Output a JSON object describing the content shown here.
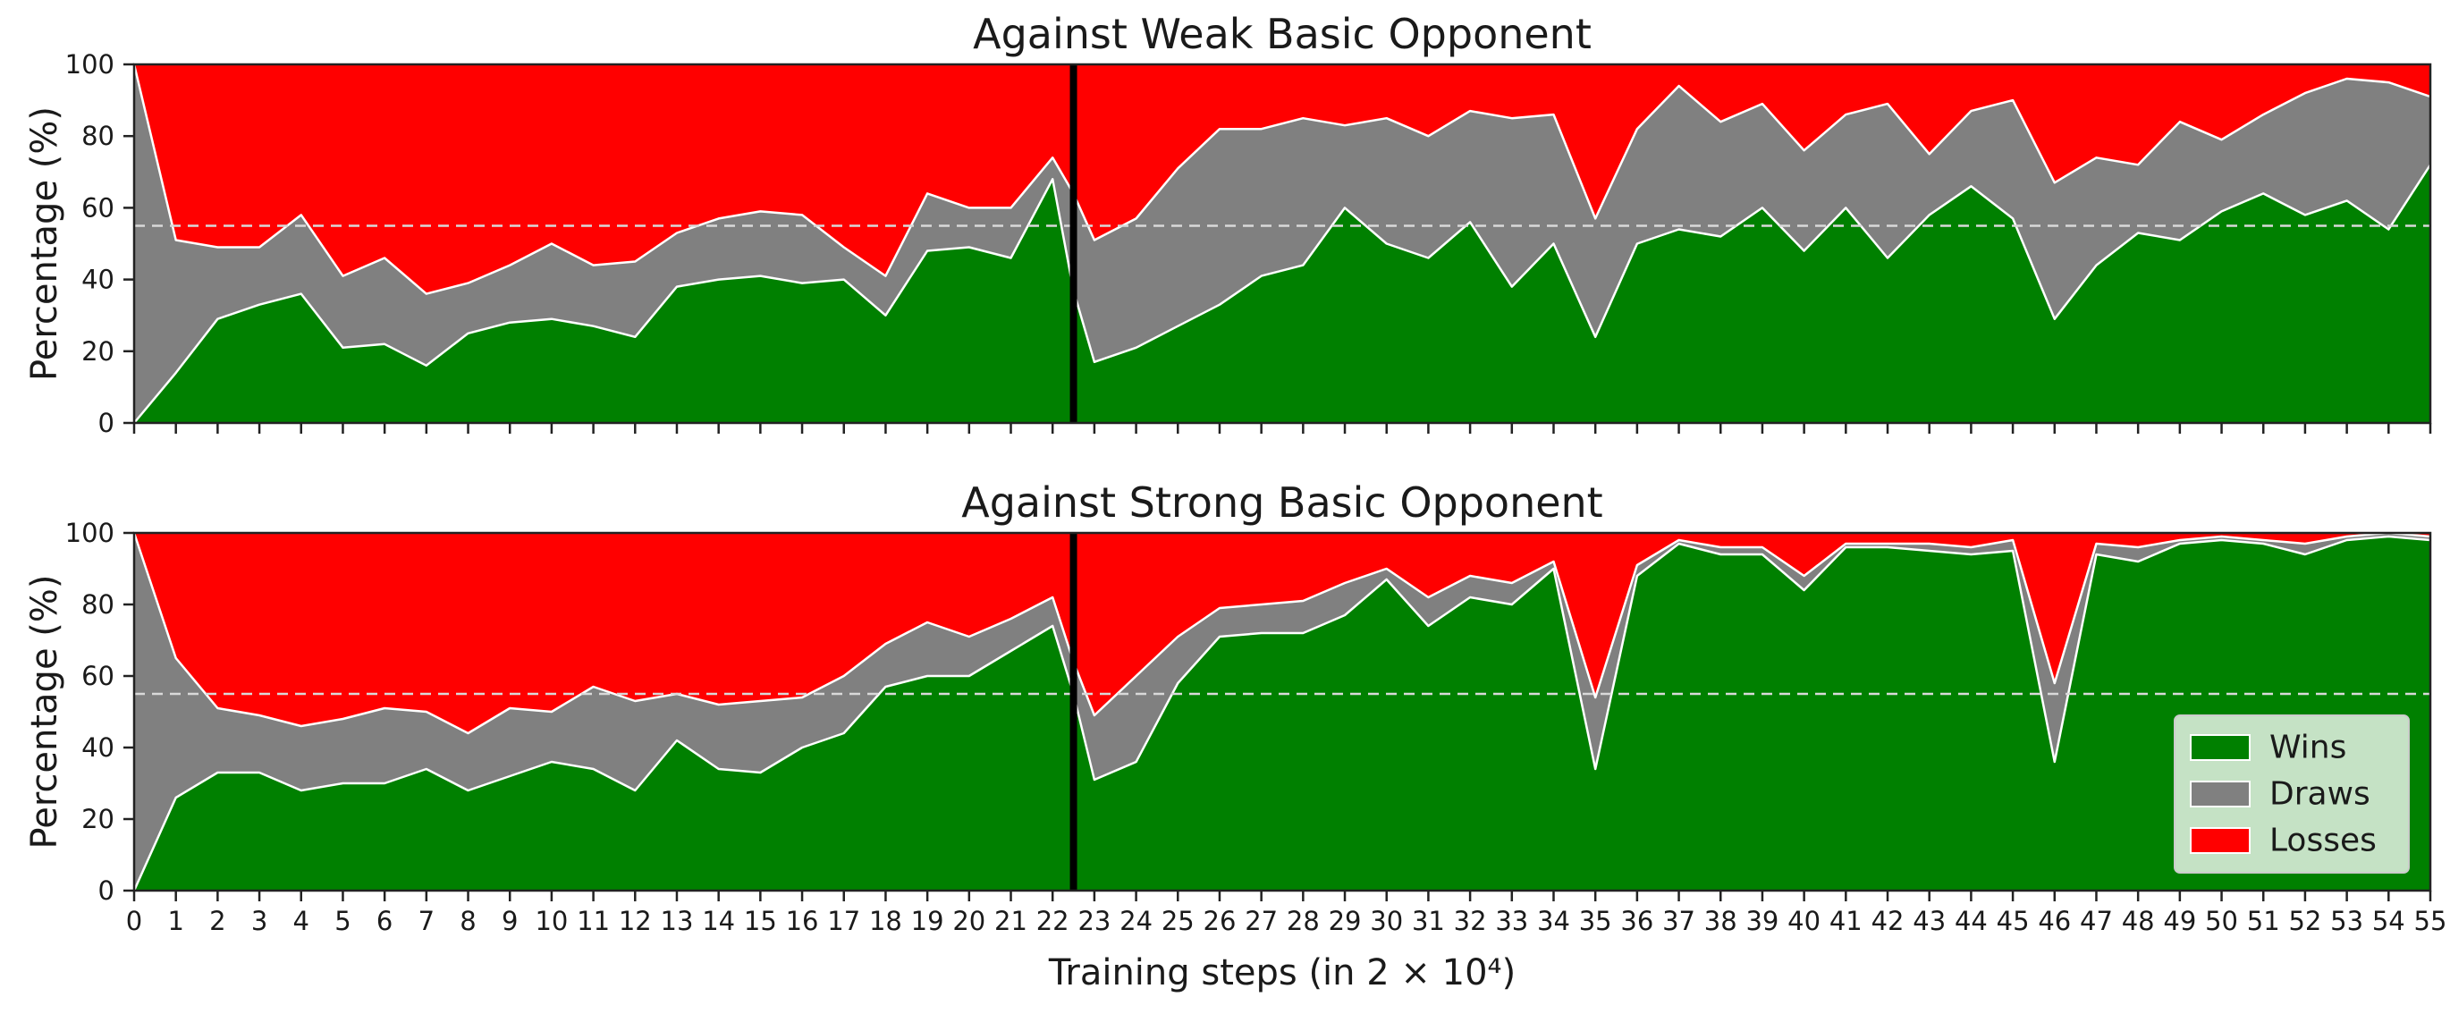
{
  "chart_data": [
    {
      "type": "area",
      "stacked": true,
      "title": "Against Weak Basic Opponent",
      "ylabel": "Percentage (%)",
      "xlabel": "",
      "show_xtick_labels": false,
      "xlim": [
        0,
        55
      ],
      "ylim": [
        0,
        100
      ],
      "yticks": [
        0,
        20,
        40,
        60,
        80,
        100
      ],
      "grid": false,
      "reference_line": {
        "y": 55,
        "style": "dashed",
        "color": "#d9d9d9"
      },
      "vertical_marker": {
        "x": 22.5,
        "color": "#000000"
      },
      "x": [
        0,
        1,
        2,
        3,
        4,
        5,
        6,
        7,
        8,
        9,
        10,
        11,
        12,
        13,
        14,
        15,
        16,
        17,
        18,
        19,
        20,
        21,
        22,
        22.5,
        23,
        24,
        25,
        26,
        27,
        28,
        29,
        30,
        31,
        32,
        33,
        34,
        35,
        36,
        37,
        38,
        39,
        40,
        41,
        42,
        43,
        44,
        45,
        46,
        47,
        48,
        49,
        50,
        51,
        52,
        53,
        54,
        55
      ],
      "series": [
        {
          "name": "Wins",
          "color": "#008000",
          "values": [
            0,
            14,
            29,
            33,
            36,
            21,
            22,
            16,
            25,
            28,
            29,
            27,
            24,
            38,
            40,
            41,
            39,
            40,
            30,
            48,
            49,
            46,
            68,
            37,
            17,
            21,
            27,
            33,
            41,
            44,
            60,
            50,
            46,
            56,
            38,
            50,
            24,
            50,
            54,
            52,
            60,
            48,
            60,
            46,
            58,
            66,
            57,
            29,
            44,
            53,
            51,
            59,
            64,
            58,
            62,
            54,
            72
          ]
        },
        {
          "name": "Draws",
          "color": "#808080",
          "values": [
            100,
            37,
            20,
            16,
            22,
            20,
            24,
            20,
            14,
            16,
            21,
            17,
            21,
            15,
            17,
            18,
            19,
            9,
            11,
            16,
            11,
            14,
            6,
            27,
            34,
            36,
            44,
            49,
            41,
            41,
            23,
            35,
            34,
            31,
            47,
            36,
            33,
            32,
            40,
            32,
            29,
            28,
            26,
            43,
            17,
            21,
            33,
            38,
            30,
            19,
            33,
            20,
            22,
            34,
            34,
            41,
            19
          ]
        },
        {
          "name": "Losses",
          "color": "#ff0000",
          "values": [
            0,
            49,
            51,
            51,
            42,
            59,
            54,
            64,
            61,
            56,
            50,
            56,
            55,
            47,
            43,
            41,
            42,
            51,
            59,
            36,
            40,
            40,
            26,
            36,
            49,
            43,
            29,
            18,
            18,
            15,
            17,
            15,
            20,
            13,
            15,
            14,
            43,
            18,
            6,
            16,
            11,
            24,
            14,
            11,
            25,
            13,
            10,
            33,
            26,
            28,
            16,
            21,
            14,
            8,
            4,
            5,
            9
          ]
        }
      ]
    },
    {
      "type": "area",
      "stacked": true,
      "title": "Against Strong Basic Opponent",
      "ylabel": "Percentage (%)",
      "xlabel": "Training steps (in 2 × 10⁴)",
      "show_xtick_labels": true,
      "xlim": [
        0,
        55
      ],
      "ylim": [
        0,
        100
      ],
      "yticks": [
        0,
        20,
        40,
        60,
        80,
        100
      ],
      "xticks": [
        "0",
        "1",
        "2",
        "3",
        "4",
        "5",
        "6",
        "7",
        "8",
        "9",
        "10",
        "11",
        "12",
        "13",
        "14",
        "15",
        "16",
        "17",
        "18",
        "19",
        "20",
        "21",
        "22",
        "23",
        "24",
        "25",
        "26",
        "27",
        "28",
        "29",
        "30",
        "31",
        "32",
        "33",
        "34",
        "35",
        "36",
        "37",
        "38",
        "39",
        "40",
        "41",
        "42",
        "43",
        "44",
        "45",
        "46",
        "47",
        "48",
        "49",
        "50",
        "51",
        "52",
        "53",
        "54",
        "55"
      ],
      "grid": false,
      "reference_line": {
        "y": 55,
        "style": "dashed",
        "color": "#d9d9d9"
      },
      "vertical_marker": {
        "x": 22.5,
        "color": "#000000"
      },
      "legend": {
        "position": "lower-right",
        "entries": [
          "Wins",
          "Draws",
          "Losses"
        ]
      },
      "x": [
        0,
        1,
        2,
        3,
        4,
        5,
        6,
        7,
        8,
        9,
        10,
        11,
        12,
        13,
        14,
        15,
        16,
        17,
        18,
        19,
        20,
        21,
        22,
        22.5,
        23,
        24,
        25,
        26,
        27,
        28,
        29,
        30,
        31,
        32,
        33,
        34,
        35,
        36,
        37,
        38,
        39,
        40,
        41,
        42,
        43,
        44,
        45,
        46,
        47,
        48,
        49,
        50,
        51,
        52,
        53,
        54,
        55
      ],
      "series": [
        {
          "name": "Wins",
          "color": "#008000",
          "values": [
            0,
            26,
            33,
            33,
            28,
            30,
            30,
            34,
            28,
            32,
            36,
            34,
            28,
            42,
            34,
            33,
            40,
            44,
            57,
            60,
            60,
            67,
            74,
            55,
            31,
            36,
            58,
            71,
            72,
            72,
            77,
            87,
            74,
            82,
            80,
            90,
            34,
            88,
            97,
            94,
            94,
            84,
            96,
            96,
            95,
            94,
            95,
            36,
            94,
            92,
            97,
            98,
            97,
            94,
            98,
            99,
            98
          ]
        },
        {
          "name": "Draws",
          "color": "#808080",
          "values": [
            100,
            39,
            18,
            16,
            18,
            18,
            21,
            16,
            16,
            19,
            14,
            23,
            25,
            13,
            18,
            20,
            14,
            16,
            12,
            15,
            11,
            9,
            8,
            9,
            18,
            24,
            13,
            8,
            8,
            9,
            9,
            3,
            8,
            6,
            6,
            2,
            20,
            3,
            1,
            2,
            2,
            4,
            1,
            1,
            2,
            2,
            3,
            22,
            3,
            4,
            1,
            1,
            1,
            3,
            1,
            1,
            1
          ]
        },
        {
          "name": "Losses",
          "color": "#ff0000",
          "values": [
            0,
            35,
            49,
            51,
            54,
            52,
            49,
            50,
            56,
            49,
            50,
            43,
            47,
            45,
            48,
            47,
            46,
            40,
            31,
            25,
            29,
            24,
            18,
            36,
            51,
            40,
            29,
            21,
            20,
            19,
            14,
            10,
            18,
            12,
            14,
            8,
            46,
            9,
            2,
            4,
            4,
            12,
            3,
            3,
            3,
            4,
            2,
            42,
            3,
            4,
            2,
            1,
            2,
            3,
            1,
            0,
            1
          ]
        }
      ]
    }
  ]
}
